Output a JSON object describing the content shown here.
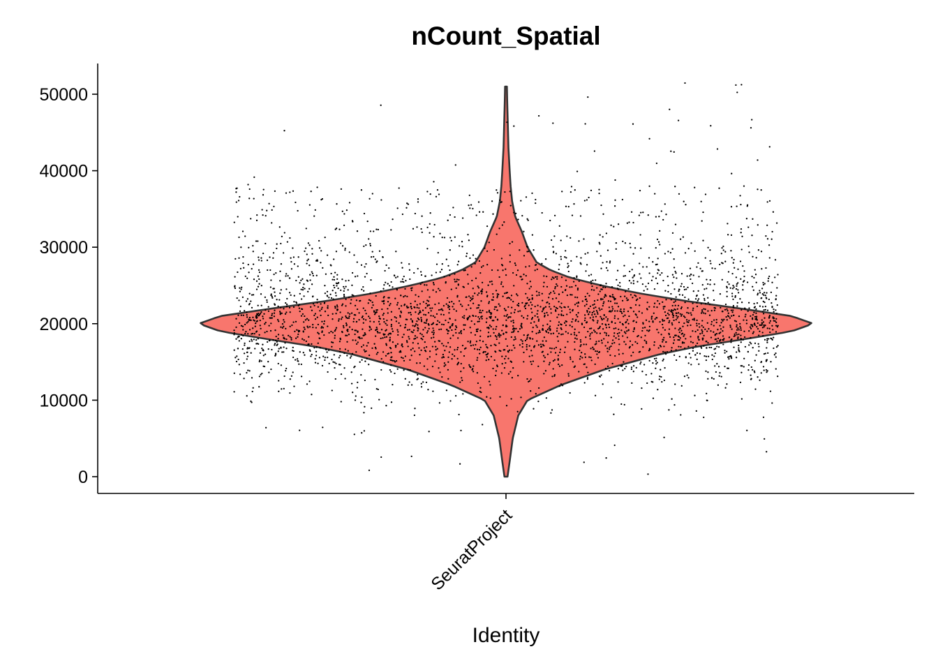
{
  "chart_data": {
    "type": "violin",
    "title": "nCount_Spatial",
    "xlabel": "Identity",
    "ylabel": "",
    "categories": [
      "SeuratProject"
    ],
    "ylim": [
      0,
      52000
    ],
    "y_ticks": [
      0,
      10000,
      20000,
      30000,
      40000,
      50000
    ],
    "y_tick_labels": [
      "0",
      "10000",
      "20000",
      "30000",
      "40000",
      "50000"
    ],
    "grid": false,
    "legend": "none",
    "fill_color": "#F8766D",
    "outline_color": "#333333",
    "point_color": "#000000",
    "x_tick_label_rotation_deg": -45,
    "series": [
      {
        "category": "SeuratProject",
        "min": 0,
        "max": 51000,
        "median": 20000,
        "density_profile": [
          [
            0,
            0.005
          ],
          [
            2000,
            0.012
          ],
          [
            5000,
            0.022
          ],
          [
            8000,
            0.04
          ],
          [
            10000,
            0.07
          ],
          [
            12000,
            0.18
          ],
          [
            14000,
            0.32
          ],
          [
            16000,
            0.5
          ],
          [
            17000,
            0.62
          ],
          [
            18000,
            0.78
          ],
          [
            19000,
            0.93
          ],
          [
            20000,
            1.0
          ],
          [
            21000,
            0.93
          ],
          [
            22000,
            0.76
          ],
          [
            23000,
            0.58
          ],
          [
            24000,
            0.43
          ],
          [
            25000,
            0.31
          ],
          [
            26000,
            0.21
          ],
          [
            27000,
            0.145
          ],
          [
            28000,
            0.1
          ],
          [
            30000,
            0.07
          ],
          [
            32000,
            0.052
          ],
          [
            34000,
            0.03
          ],
          [
            36000,
            0.02
          ],
          [
            38000,
            0.015
          ],
          [
            40000,
            0.012
          ],
          [
            43000,
            0.008
          ],
          [
            46000,
            0.006
          ],
          [
            49000,
            0.004
          ],
          [
            51000,
            0.003
          ]
        ]
      }
    ]
  }
}
